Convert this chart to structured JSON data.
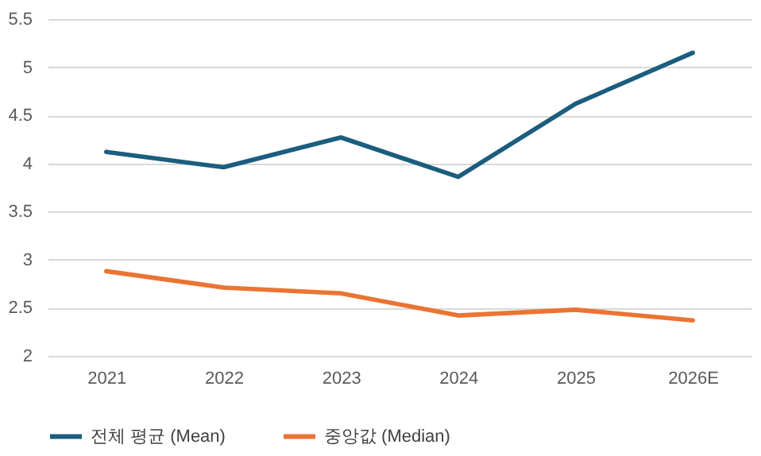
{
  "chart_data": {
    "type": "line",
    "categories": [
      "2021",
      "2022",
      "2023",
      "2024",
      "2025",
      "2026E"
    ],
    "series": [
      {
        "name": "전체 평균 (Mean)",
        "color": "#1b5d7e",
        "values": [
          4.12,
          3.96,
          4.27,
          3.86,
          4.62,
          5.15
        ]
      },
      {
        "name": "중앙값 (Median)",
        "color": "#ea7432",
        "values": [
          2.88,
          2.71,
          2.65,
          2.42,
          2.48,
          2.37
        ]
      }
    ],
    "ylim": [
      2,
      5.5
    ],
    "yticks": [
      2,
      2.5,
      3,
      3.5,
      4,
      4.5,
      5,
      5.5
    ],
    "grid": "y",
    "legend": "bottom",
    "marker": "none",
    "line_style": "solid"
  }
}
